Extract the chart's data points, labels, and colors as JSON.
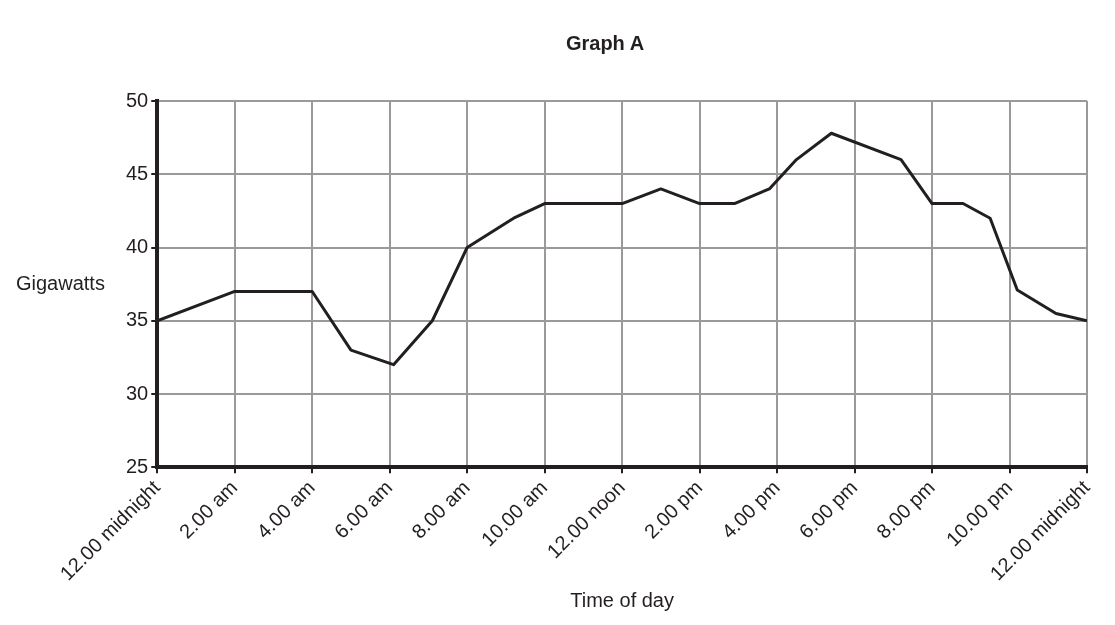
{
  "chart_data": {
    "type": "line",
    "title": "Graph A",
    "xlabel": "Time of day",
    "ylabel": "Gigawatts",
    "x": [
      "--01-01T00:00",
      "--01-01T02:00",
      "--01-01T04:00",
      "--01-01T05:00",
      "--01-01T06:06",
      "--01-01T07:06",
      "--01-01T08:00",
      "--01-01T09:12",
      "--01-01T10:00",
      "--01-01T12:00",
      "--01-01T13:00",
      "--01-01T14:00",
      "--01-01T14:54",
      "--01-01T15:48",
      "--01-01T16:30",
      "--01-01T17:24",
      "--01-01T19:12",
      "--01-01T20:00",
      "--01-01T20:48",
      "--01-01T21:30",
      "--01-01T22:12",
      "--01-01T23:12",
      "--01-02T00:00"
    ],
    "series": [
      {
        "color": "#231f20",
        "values": [
          35,
          37,
          37,
          33,
          32,
          35,
          40,
          42,
          43,
          43,
          44,
          43,
          43,
          44,
          46,
          47.8,
          46,
          43,
          43,
          42,
          37.1,
          35.5,
          35
        ]
      }
    ],
    "xlim": [
      "--01-01T00:00",
      "--01-02T00:00"
    ],
    "xticks": [
      {
        "value": "--01-01T00:00",
        "label": "12.00 midnight"
      },
      {
        "value": "--01-01T02:00",
        "label": "2.00 am"
      },
      {
        "value": "--01-01T04:00",
        "label": "4.00 am"
      },
      {
        "value": "--01-01T06:00",
        "label": "6.00 am"
      },
      {
        "value": "--01-01T08:00",
        "label": "8.00 am"
      },
      {
        "value": "--01-01T10:00",
        "label": "10.00 am"
      },
      {
        "value": "--01-01T12:00",
        "label": "12.00 noon"
      },
      {
        "value": "--01-01T14:00",
        "label": "2.00 pm"
      },
      {
        "value": "--01-01T16:00",
        "label": "4.00 pm"
      },
      {
        "value": "--01-01T18:00",
        "label": "6.00 pm"
      },
      {
        "value": "--01-01T20:00",
        "label": "8.00 pm"
      },
      {
        "value": "--01-01T22:00",
        "label": "10.00 pm"
      },
      {
        "value": "--01-02T00:00",
        "label": "12.00 midnight"
      }
    ],
    "ylim": [
      25,
      50
    ],
    "yticks": [
      25,
      30,
      35,
      40,
      45,
      50
    ],
    "grid": true,
    "legend": false,
    "marker": "none",
    "line_style": "solid"
  }
}
